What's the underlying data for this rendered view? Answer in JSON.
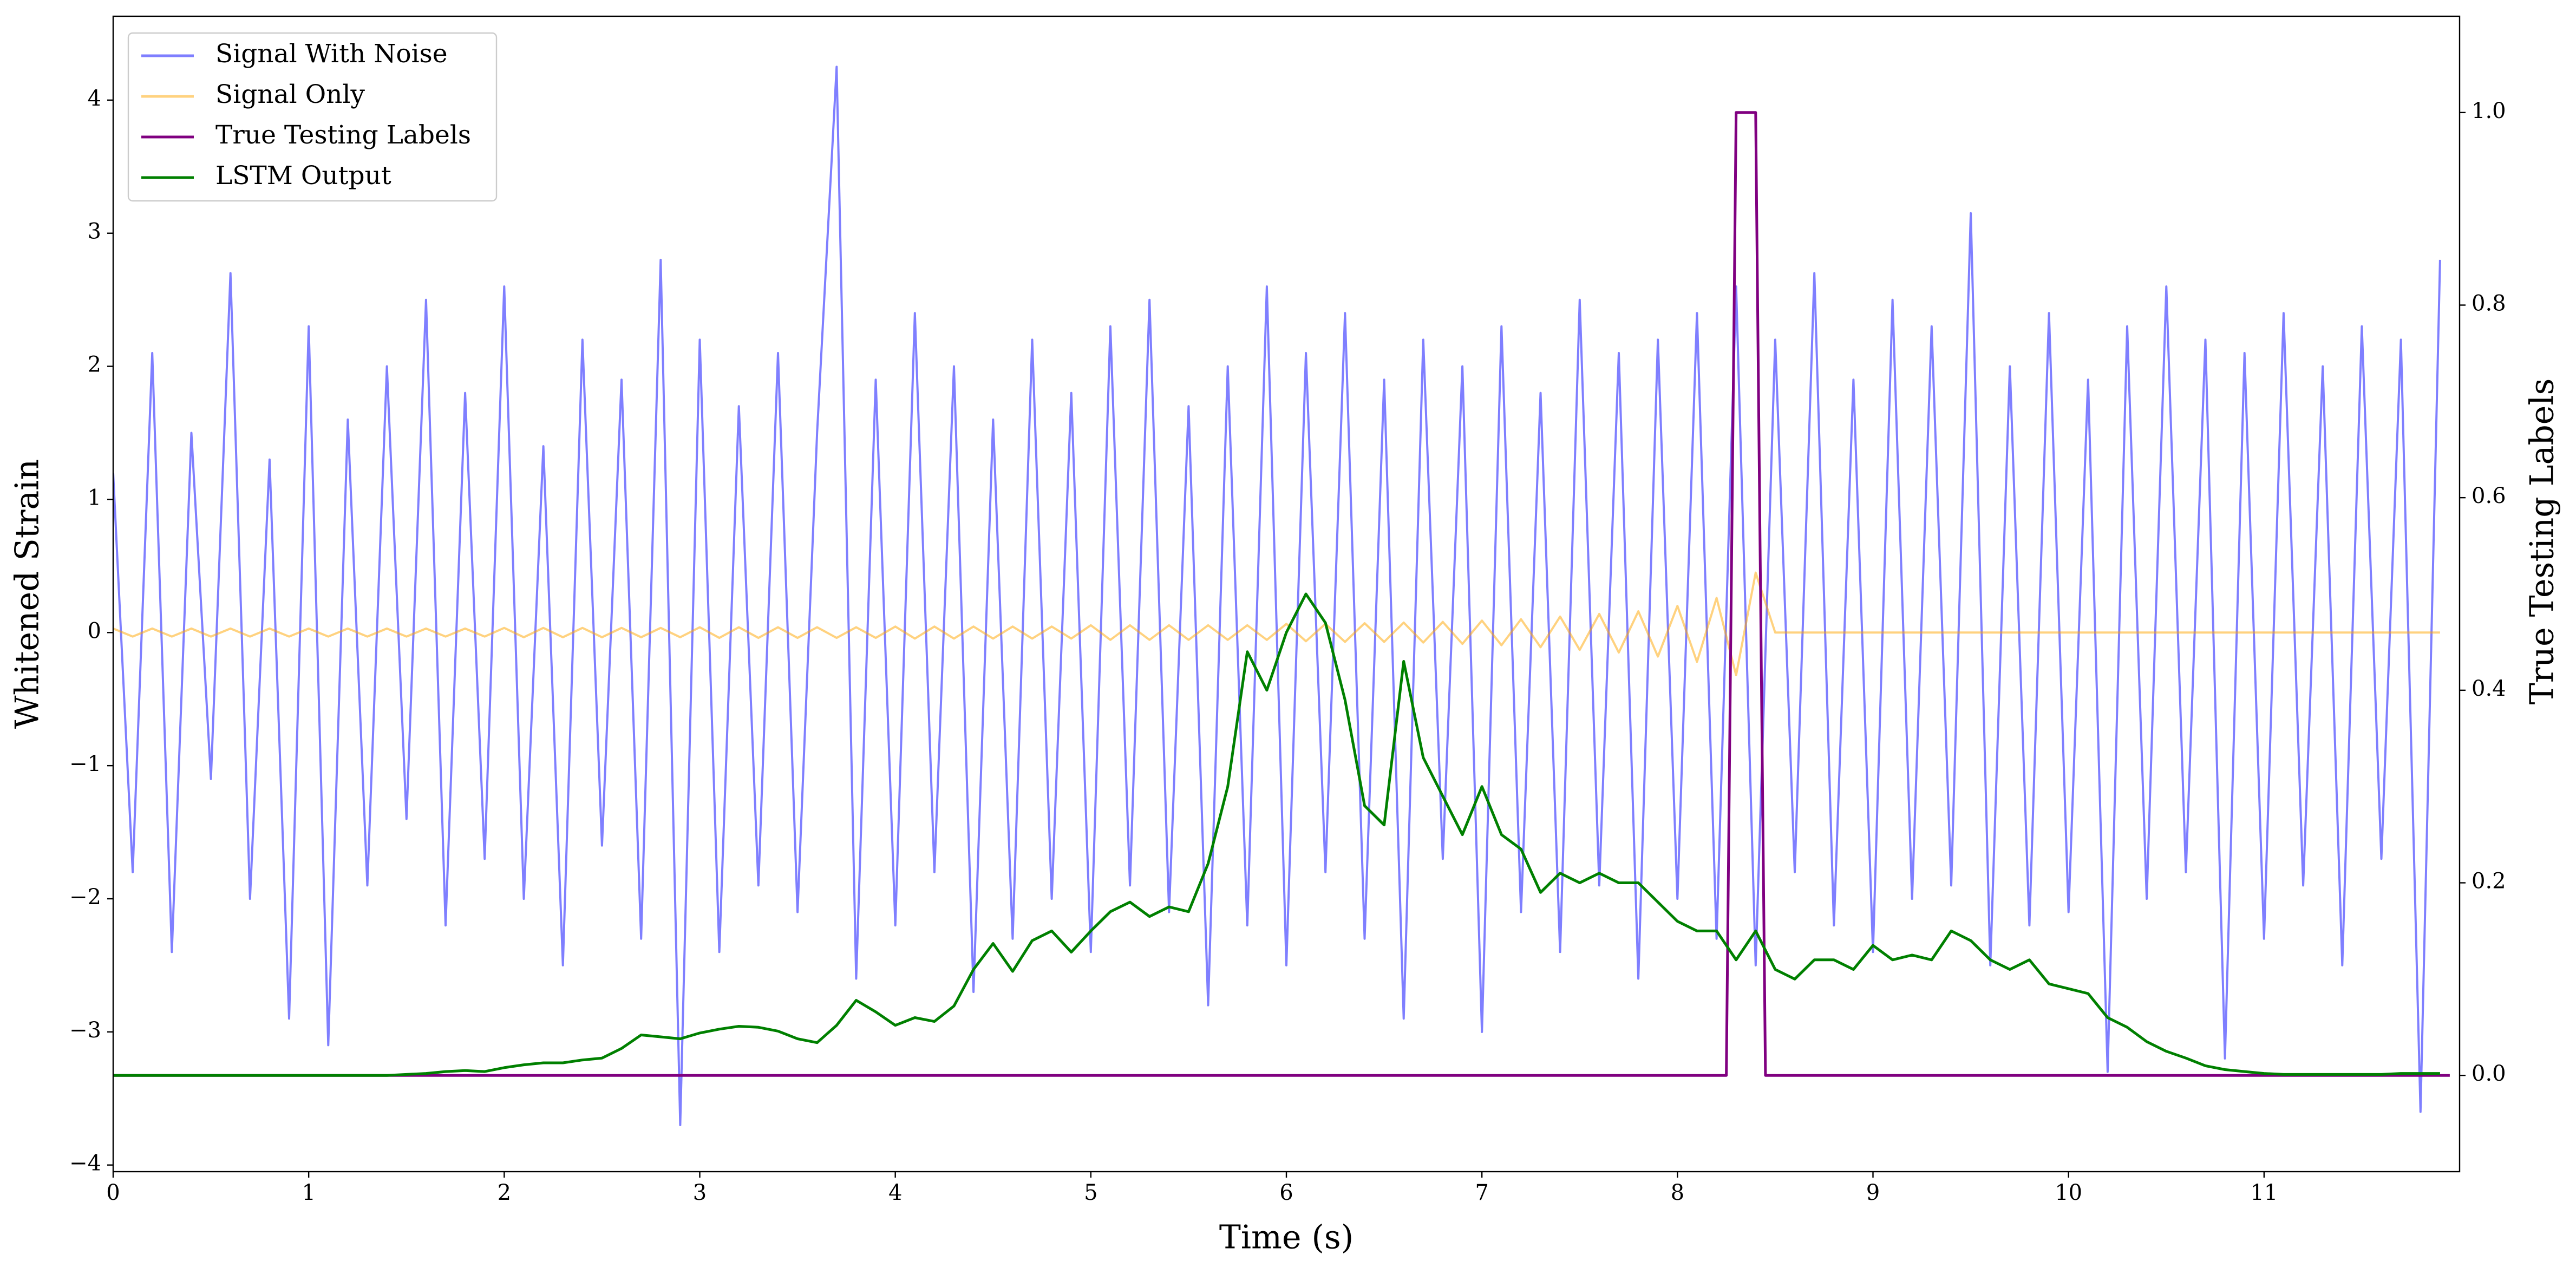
{
  "chart_data": {
    "type": "line",
    "xlabel": "Time (s)",
    "ylabel": "Whitened Strain",
    "y2label": "True Testing Labels",
    "xlim": [
      0,
      12
    ],
    "xticks": [
      0,
      1,
      2,
      3,
      4,
      5,
      6,
      7,
      8,
      9,
      10,
      11
    ],
    "ylim": [
      -4.05,
      4.63
    ],
    "yticks": [
      {
        "value": -4,
        "label": "−4"
      },
      {
        "value": -3,
        "label": "−3"
      },
      {
        "value": -2,
        "label": "−2"
      },
      {
        "value": -1,
        "label": "−1"
      },
      0,
      1,
      2,
      3,
      4
    ],
    "y2lim": [
      -0.1,
      1.1
    ],
    "y2ticks": [
      {
        "value": 0,
        "label": "0.0"
      },
      {
        "value": 0.2,
        "label": "0.2"
      },
      {
        "value": 0.4,
        "label": "0.4"
      },
      {
        "value": 0.6,
        "label": "0.6"
      },
      {
        "value": 0.8,
        "label": "0.8"
      },
      {
        "value": 1,
        "label": "1.0"
      }
    ],
    "legend": "upper left",
    "series": [
      {
        "name": "Signal With Noise",
        "color": "#0000ff",
        "alpha": 0.5,
        "x": [
          0,
          0.1,
          0.2,
          0.3,
          0.4,
          0.5,
          0.6,
          0.7,
          0.8,
          0.9,
          1,
          1.1,
          1.2,
          1.3,
          1.4,
          1.5,
          1.6,
          1.7,
          1.8,
          1.9,
          2,
          2.1,
          2.2,
          2.3,
          2.4,
          2.5,
          2.6,
          2.7,
          2.8,
          2.9,
          3,
          3.1,
          3.2,
          3.3,
          3.4,
          3.5,
          3.6,
          3.7,
          3.8,
          3.9,
          4,
          4.1,
          4.2,
          4.3,
          4.4,
          4.5,
          4.6,
          4.7,
          4.8,
          4.9,
          5,
          5.1,
          5.2,
          5.3,
          5.4,
          5.5,
          5.6,
          5.7,
          5.8,
          5.9,
          6,
          6.1,
          6.2,
          6.3,
          6.4,
          6.5,
          6.6,
          6.7,
          6.8,
          6.9,
          7,
          7.1,
          7.2,
          7.3,
          7.4,
          7.5,
          7.6,
          7.7,
          7.8,
          7.9,
          8,
          8.1,
          8.2,
          8.3,
          8.4,
          8.5,
          8.6,
          8.7,
          8.8,
          8.9,
          9,
          9.1,
          9.2,
          9.3,
          9.4,
          9.5,
          9.6,
          9.7,
          9.8,
          9.9,
          10,
          10.1,
          10.2,
          10.3,
          10.4,
          10.5,
          10.6,
          10.7,
          10.8,
          10.9,
          11,
          11.1,
          11.2,
          11.3,
          11.4,
          11.5,
          11.6,
          11.7,
          11.8,
          11.9
        ],
        "values": [
          1.2,
          -1.8,
          2.1,
          -2.4,
          1.5,
          -1.1,
          2.7,
          -2.0,
          1.3,
          -2.9,
          2.3,
          -3.1,
          1.6,
          -1.9,
          2.0,
          -1.4,
          2.5,
          -2.2,
          1.8,
          -1.7,
          2.6,
          -2.0,
          1.4,
          -2.5,
          2.2,
          -1.6,
          1.9,
          -2.3,
          2.8,
          -3.7,
          2.2,
          -2.4,
          1.7,
          -1.9,
          2.1,
          -2.1,
          1.5,
          4.25,
          -2.6,
          1.9,
          -2.2,
          2.4,
          -1.8,
          2.0,
          -2.7,
          1.6,
          -2.3,
          2.2,
          -2.0,
          1.8,
          -2.4,
          2.3,
          -1.9,
          2.5,
          -2.1,
          1.7,
          -2.8,
          2.0,
          -2.2,
          2.6,
          -2.5,
          2.1,
          -1.8,
          2.4,
          -2.3,
          1.9,
          -2.9,
          2.2,
          -1.7,
          2.0,
          -3.0,
          2.3,
          -2.1,
          1.8,
          -2.4,
          2.5,
          -1.9,
          2.1,
          -2.6,
          2.2,
          -2.0,
          2.4,
          -2.3,
          2.6,
          -2.5,
          2.2,
          -1.8,
          2.7,
          -2.2,
          1.9,
          -2.4,
          2.5,
          -2.0,
          2.3,
          -1.9,
          3.15,
          -2.5,
          2.0,
          -2.2,
          2.4,
          -2.1,
          1.9,
          -3.3,
          2.3,
          -2.0,
          2.6,
          -1.8,
          2.2,
          -3.2,
          2.1,
          -2.3,
          2.4,
          -1.9,
          2.0,
          -2.5,
          2.3,
          -1.7,
          2.2,
          -3.6,
          2.8
        ]
      },
      {
        "name": "Signal Only",
        "color": "#ffa500",
        "alpha": 0.5,
        "x": [
          0,
          0.1,
          0.2,
          0.3,
          0.4,
          0.5,
          0.6,
          0.7,
          0.8,
          0.9,
          1,
          1.1,
          1.2,
          1.3,
          1.4,
          1.5,
          1.6,
          1.7,
          1.8,
          1.9,
          2,
          2.1,
          2.2,
          2.3,
          2.4,
          2.5,
          2.6,
          2.7,
          2.8,
          2.9,
          3,
          3.1,
          3.2,
          3.3,
          3.4,
          3.5,
          3.6,
          3.7,
          3.8,
          3.9,
          4,
          4.1,
          4.2,
          4.3,
          4.4,
          4.5,
          4.6,
          4.7,
          4.8,
          4.9,
          5,
          5.1,
          5.2,
          5.3,
          5.4,
          5.5,
          5.6,
          5.7,
          5.8,
          5.9,
          6,
          6.1,
          6.2,
          6.3,
          6.4,
          6.5,
          6.6,
          6.7,
          6.8,
          6.9,
          7,
          7.1,
          7.2,
          7.3,
          7.4,
          7.5,
          7.6,
          7.7,
          7.8,
          7.9,
          8,
          8.1,
          8.2,
          8.3,
          8.4,
          8.5,
          8.6,
          8.7,
          8.8,
          8.9,
          9,
          9.1,
          9.2,
          9.3,
          9.4,
          9.5,
          9.6,
          9.7,
          9.8,
          9.9,
          10,
          10.1,
          10.2,
          10.3,
          10.4,
          10.5,
          10.6,
          10.7,
          10.8,
          10.9,
          11,
          11.1,
          11.2,
          11.3,
          11.4,
          11.5,
          11.6,
          11.7,
          11.8,
          11.9
        ],
        "values": [
          0.03,
          -0.03,
          0.03,
          -0.03,
          0.03,
          -0.03,
          0.03,
          -0.03,
          0.03,
          -0.03,
          0.03,
          -0.03,
          0.03,
          -0.03,
          0.03,
          -0.03,
          0.03,
          -0.03,
          0.03,
          -0.03,
          0.035,
          -0.035,
          0.035,
          -0.035,
          0.035,
          -0.035,
          0.035,
          -0.035,
          0.035,
          -0.035,
          0.04,
          -0.04,
          0.04,
          -0.04,
          0.04,
          -0.04,
          0.04,
          -0.04,
          0.04,
          -0.04,
          0.045,
          -0.045,
          0.045,
          -0.045,
          0.045,
          -0.045,
          0.045,
          -0.045,
          0.045,
          -0.045,
          0.055,
          -0.055,
          0.055,
          -0.055,
          0.055,
          -0.055,
          0.055,
          -0.055,
          0.055,
          -0.055,
          0.065,
          -0.065,
          0.065,
          -0.07,
          0.07,
          -0.07,
          0.075,
          -0.075,
          0.08,
          -0.085,
          0.09,
          -0.095,
          0.1,
          -0.11,
          0.12,
          -0.13,
          0.14,
          -0.15,
          0.16,
          -0.18,
          0.2,
          -0.22,
          0.26,
          -0.32,
          0.45,
          0,
          0,
          0,
          0,
          0,
          0,
          0,
          0,
          0,
          0,
          0,
          0,
          0,
          0,
          0,
          0,
          0,
          0,
          0,
          0,
          0,
          0,
          0,
          0,
          0,
          0,
          0,
          0,
          0,
          0,
          0,
          0,
          0,
          0,
          0
        ]
      },
      {
        "name": "True Testing Labels",
        "color": "#800080",
        "axis": "y2",
        "x": [
          0,
          8.25,
          8.3,
          8.4,
          8.45,
          11.95
        ],
        "values": [
          0,
          0,
          1,
          1,
          0,
          0
        ]
      },
      {
        "name": "LSTM Output",
        "color": "#008000",
        "axis": "y2",
        "x": [
          0,
          0.1,
          0.2,
          0.3,
          0.4,
          0.5,
          0.6,
          0.7,
          0.8,
          0.9,
          1,
          1.1,
          1.2,
          1.3,
          1.4,
          1.5,
          1.6,
          1.7,
          1.8,
          1.9,
          2,
          2.1,
          2.2,
          2.3,
          2.4,
          2.5,
          2.6,
          2.7,
          2.8,
          2.9,
          3,
          3.1,
          3.2,
          3.3,
          3.4,
          3.5,
          3.6,
          3.7,
          3.8,
          3.9,
          4,
          4.1,
          4.2,
          4.3,
          4.4,
          4.5,
          4.6,
          4.7,
          4.8,
          4.9,
          5,
          5.1,
          5.2,
          5.3,
          5.4,
          5.5,
          5.6,
          5.7,
          5.8,
          5.9,
          6,
          6.1,
          6.2,
          6.3,
          6.4,
          6.5,
          6.6,
          6.7,
          6.8,
          6.9,
          7,
          7.1,
          7.2,
          7.3,
          7.4,
          7.5,
          7.6,
          7.7,
          7.8,
          7.9,
          8,
          8.1,
          8.2,
          8.3,
          8.4,
          8.5,
          8.6,
          8.7,
          8.8,
          8.9,
          9,
          9.1,
          9.2,
          9.3,
          9.4,
          9.5,
          9.6,
          9.7,
          9.8,
          9.9,
          10,
          10.1,
          10.2,
          10.3,
          10.4,
          10.5,
          10.6,
          10.7,
          10.8,
          10.9,
          11,
          11.1,
          11.2,
          11.3,
          11.4,
          11.5,
          11.6,
          11.7,
          11.8,
          11.9
        ],
        "values": [
          0,
          0,
          0,
          0,
          0,
          0,
          0,
          0,
          0,
          0,
          0,
          0,
          0,
          0,
          0,
          0.001,
          0.002,
          0.004,
          0.005,
          0.004,
          0.008,
          0.011,
          0.013,
          0.013,
          0.016,
          0.018,
          0.028,
          0.042,
          0.04,
          0.038,
          0.044,
          0.048,
          0.051,
          0.05,
          0.046,
          0.038,
          0.034,
          0.052,
          0.078,
          0.066,
          0.052,
          0.06,
          0.056,
          0.072,
          0.11,
          0.137,
          0.108,
          0.14,
          0.15,
          0.128,
          0.15,
          0.17,
          0.18,
          0.165,
          0.175,
          0.17,
          0.22,
          0.3,
          0.44,
          0.4,
          0.46,
          0.5,
          0.47,
          0.39,
          0.28,
          0.26,
          0.43,
          0.33,
          0.29,
          0.25,
          0.3,
          0.25,
          0.235,
          0.19,
          0.21,
          0.2,
          0.21,
          0.2,
          0.2,
          0.18,
          0.16,
          0.15,
          0.15,
          0.12,
          0.15,
          0.11,
          0.1,
          0.12,
          0.12,
          0.11,
          0.135,
          0.12,
          0.125,
          0.12,
          0.15,
          0.14,
          0.12,
          0.11,
          0.12,
          0.095,
          0.09,
          0.085,
          0.06,
          0.05,
          0.035,
          0.025,
          0.018,
          0.01,
          0.006,
          0.004,
          0.002,
          0.001,
          0.001,
          0.001,
          0.001,
          0.001,
          0.001,
          0.002,
          0.002,
          0.002
        ]
      }
    ]
  }
}
